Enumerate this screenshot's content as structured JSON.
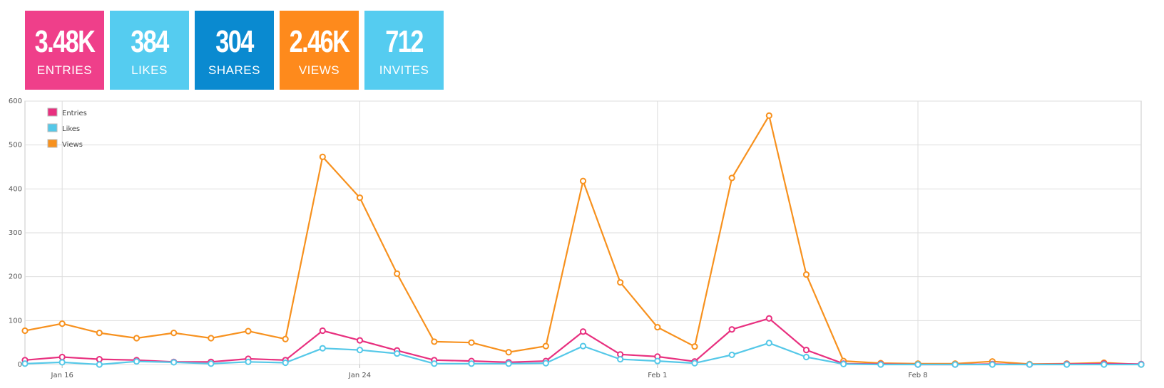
{
  "stats": [
    {
      "value": "3.48K",
      "label": "ENTRIES",
      "color": "#ef3f8a"
    },
    {
      "value": "384",
      "label": "LIKES",
      "color": "#55ccf0"
    },
    {
      "value": "304",
      "label": "SHARES",
      "color": "#0a8ad0"
    },
    {
      "value": "2.46K",
      "label": "VIEWS",
      "color": "#fe8a1c"
    },
    {
      "value": "712",
      "label": "INVITES",
      "color": "#55ccf0"
    }
  ],
  "chart_data": {
    "type": "line",
    "ylim": [
      0,
      600
    ],
    "yticks": [
      0,
      100,
      200,
      300,
      400,
      500,
      600
    ],
    "x_start": "2015-01-15",
    "x_end": "2015-02-14",
    "xticks": [
      {
        "date": "Jan 16",
        "label": "Jan 16"
      },
      {
        "date": "Jan 24",
        "label": "Jan 24"
      },
      {
        "date": "Feb 1",
        "label": "Feb 1"
      },
      {
        "date": "Feb 8",
        "label": "Feb 8"
      }
    ],
    "x": [
      "Jan 15",
      "Jan 16",
      "Jan 17",
      "Jan 18",
      "Jan 19",
      "Jan 20",
      "Jan 21",
      "Jan 22",
      "Jan 23",
      "Jan 24",
      "Jan 25",
      "Jan 26",
      "Jan 27",
      "Jan 28",
      "Jan 29",
      "Jan 30",
      "Jan 31",
      "Feb 1",
      "Feb 2",
      "Feb 3",
      "Feb 4",
      "Feb 5",
      "Feb 6",
      "Feb 7",
      "Feb 8",
      "Feb 9",
      "Feb 10",
      "Feb 11",
      "Feb 12",
      "Feb 13",
      "Feb 14"
    ],
    "series": [
      {
        "name": "Entries",
        "color": "#e8307f",
        "values": [
          10,
          17,
          12,
          10,
          6,
          6,
          13,
          10,
          77,
          55,
          32,
          10,
          8,
          5,
          8,
          75,
          23,
          18,
          7,
          80,
          105,
          33,
          2,
          1,
          0,
          0,
          1,
          0,
          1,
          2,
          1
        ]
      },
      {
        "name": "Likes",
        "color": "#55c8e8",
        "values": [
          2,
          5,
          0,
          7,
          5,
          2,
          6,
          4,
          37,
          33,
          25,
          2,
          2,
          2,
          3,
          42,
          12,
          8,
          3,
          22,
          49,
          17,
          1,
          0,
          0,
          0,
          0,
          0,
          0,
          0,
          0
        ]
      },
      {
        "name": "Views",
        "color": "#f7911e",
        "values": [
          77,
          93,
          72,
          60,
          72,
          60,
          76,
          58,
          473,
          380,
          207,
          52,
          50,
          28,
          42,
          418,
          187,
          85,
          41,
          425,
          567,
          205,
          8,
          3,
          2,
          2,
          7,
          1,
          2,
          4,
          0
        ]
      }
    ],
    "legend": "top-left",
    "grid": true
  }
}
